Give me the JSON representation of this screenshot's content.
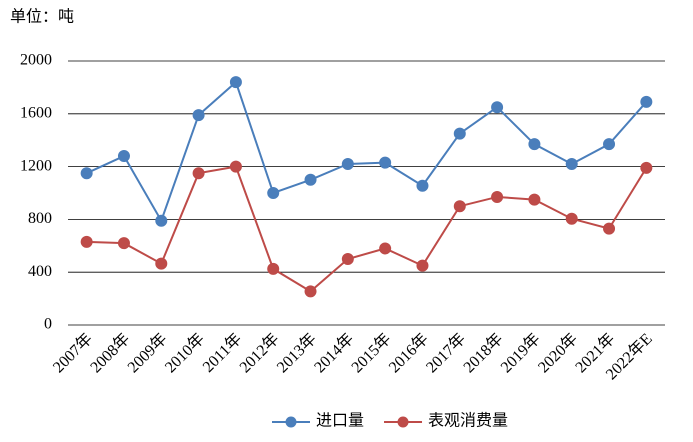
{
  "chart_data": {
    "type": "line",
    "unit_label": "单位：吨",
    "categories": [
      "2007年",
      "2008年",
      "2009年",
      "2010年",
      "2011年",
      "2012年",
      "2013年",
      "2014年",
      "2015年",
      "2016年",
      "2017年",
      "2018年",
      "2019年",
      "2020年",
      "2021年",
      "2022年E"
    ],
    "series": [
      {
        "name": "进口量",
        "color": "#4a7ebb",
        "values": [
          1150,
          1280,
          790,
          1590,
          1840,
          1000,
          1100,
          1220,
          1230,
          1055,
          1450,
          1650,
          1370,
          1220,
          1370,
          1690
        ]
      },
      {
        "name": "表观消费量",
        "color": "#be4b48",
        "values": [
          630,
          620,
          465,
          1150,
          1200,
          425,
          255,
          500,
          580,
          450,
          900,
          970,
          950,
          805,
          730,
          1190
        ]
      }
    ],
    "ylim": [
      0,
      2000
    ],
    "yticks": [
      0,
      400,
      800,
      1200,
      1600,
      2000
    ],
    "grid": true,
    "legend": "bottom"
  }
}
